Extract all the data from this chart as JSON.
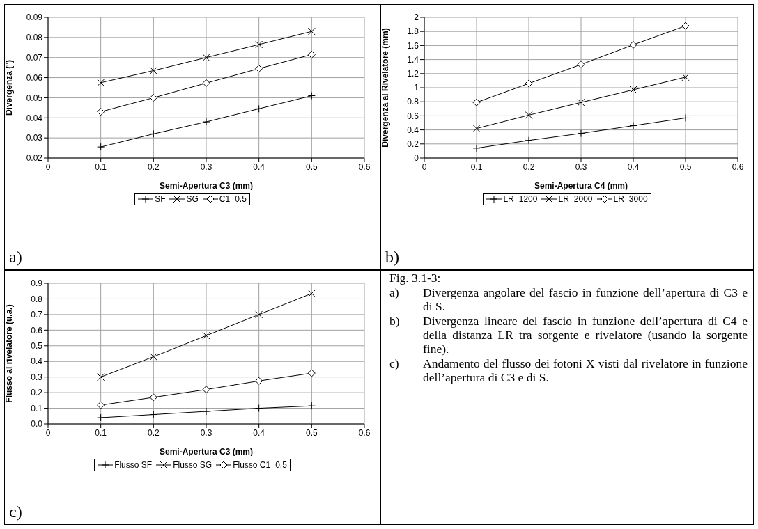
{
  "chart_data": [
    {
      "type": "line",
      "xlabel": "Semi-Apertura C3 (mm)",
      "ylabel": "Divergenza (°)",
      "annotations": [
        "a)"
      ],
      "x": [
        0.1,
        0.2,
        0.3,
        0.4,
        0.5
      ],
      "xlim": [
        0,
        0.6
      ],
      "xticks": [
        0,
        0.1,
        0.2,
        0.3,
        0.4,
        0.5,
        0.6
      ],
      "ylim": [
        0.02,
        0.09
      ],
      "yticks": [
        0.02,
        0.03,
        0.04,
        0.05,
        0.06,
        0.07,
        0.08,
        0.09
      ],
      "grid": true,
      "legend": "bottom",
      "series": [
        {
          "name": "SF",
          "color": "#000000",
          "marker": "plus",
          "values": [
            0.0255,
            0.032,
            0.038,
            0.0445,
            0.051
          ]
        },
        {
          "name": "SG",
          "color": "#000000",
          "marker": "cross",
          "values": [
            0.0575,
            0.0635,
            0.07,
            0.0765,
            0.083
          ]
        },
        {
          "name": "C1=0.5",
          "color": "#000000",
          "marker": "diamond",
          "values": [
            0.043,
            0.05,
            0.0573,
            0.0645,
            0.0715
          ]
        }
      ]
    },
    {
      "type": "line",
      "xlabel": "Semi-Apertura C4 (mm)",
      "ylabel": "Divergenza al Rivelatore (mm)",
      "annotations": [
        "b)"
      ],
      "x": [
        0.1,
        0.2,
        0.3,
        0.4,
        0.5
      ],
      "xlim": [
        0,
        0.6
      ],
      "xticks": [
        0,
        0.1,
        0.2,
        0.3,
        0.4,
        0.5,
        0.6
      ],
      "ylim": [
        0,
        2
      ],
      "yticks": [
        0,
        0.2,
        0.4,
        0.6,
        0.8,
        1,
        1.2,
        1.4,
        1.6,
        1.8,
        2
      ],
      "grid": true,
      "legend": "bottom",
      "series": [
        {
          "name": "LR=1200",
          "color": "#000000",
          "marker": "plus",
          "values": [
            0.14,
            0.25,
            0.35,
            0.46,
            0.57
          ]
        },
        {
          "name": "LR=2000",
          "color": "#000000",
          "marker": "cross",
          "values": [
            0.42,
            0.61,
            0.79,
            0.97,
            1.15
          ]
        },
        {
          "name": "LR=3000",
          "color": "#000000",
          "marker": "diamond",
          "values": [
            0.79,
            1.06,
            1.33,
            1.61,
            1.88
          ]
        }
      ]
    },
    {
      "type": "line",
      "xlabel": "Semi-Apertura C3 (mm)",
      "ylabel": "Flusso al rivelatore (u.a.)",
      "annotations": [
        "c)"
      ],
      "x": [
        0.1,
        0.2,
        0.3,
        0.4,
        0.5
      ],
      "xlim": [
        0,
        0.6
      ],
      "xticks": [
        0,
        0.1,
        0.2,
        0.3,
        0.4,
        0.5,
        0.6
      ],
      "ylim": [
        0,
        0.9
      ],
      "yticks": [
        {
          "value": 0,
          "label": "0.0"
        },
        0.1,
        0.2,
        0.3,
        0.4,
        0.5,
        0.6,
        0.7,
        0.8,
        0.9
      ],
      "grid": true,
      "legend": "bottom",
      "series": [
        {
          "name": "Flusso SF",
          "color": "#000000",
          "marker": "plus",
          "values": [
            0.04,
            0.06,
            0.08,
            0.1,
            0.115
          ]
        },
        {
          "name": "Flusso SG",
          "color": "#000000",
          "marker": "cross",
          "values": [
            0.3,
            0.43,
            0.565,
            0.7,
            0.835
          ]
        },
        {
          "name": "Flusso C1=0.5",
          "color": "#000000",
          "marker": "diamond",
          "values": [
            0.12,
            0.17,
            0.22,
            0.275,
            0.325
          ]
        }
      ]
    },
    {
      "type": "other",
      "title": "Fig. 3.1-3:",
      "annotations": [
        "a) Divergenza angolare del fascio in funzione dell’apertura di C3 e di S.",
        "b) Divergenza lineare del fascio in funzione dell’apertura di C4 e della distanza LR tra sorgente e rivelatore (usando la sorgente fine).",
        "c) Andamento del flusso dei fotoni X visti dal rivelatore in funzione dell’apertura di C3 e di S."
      ]
    }
  ]
}
